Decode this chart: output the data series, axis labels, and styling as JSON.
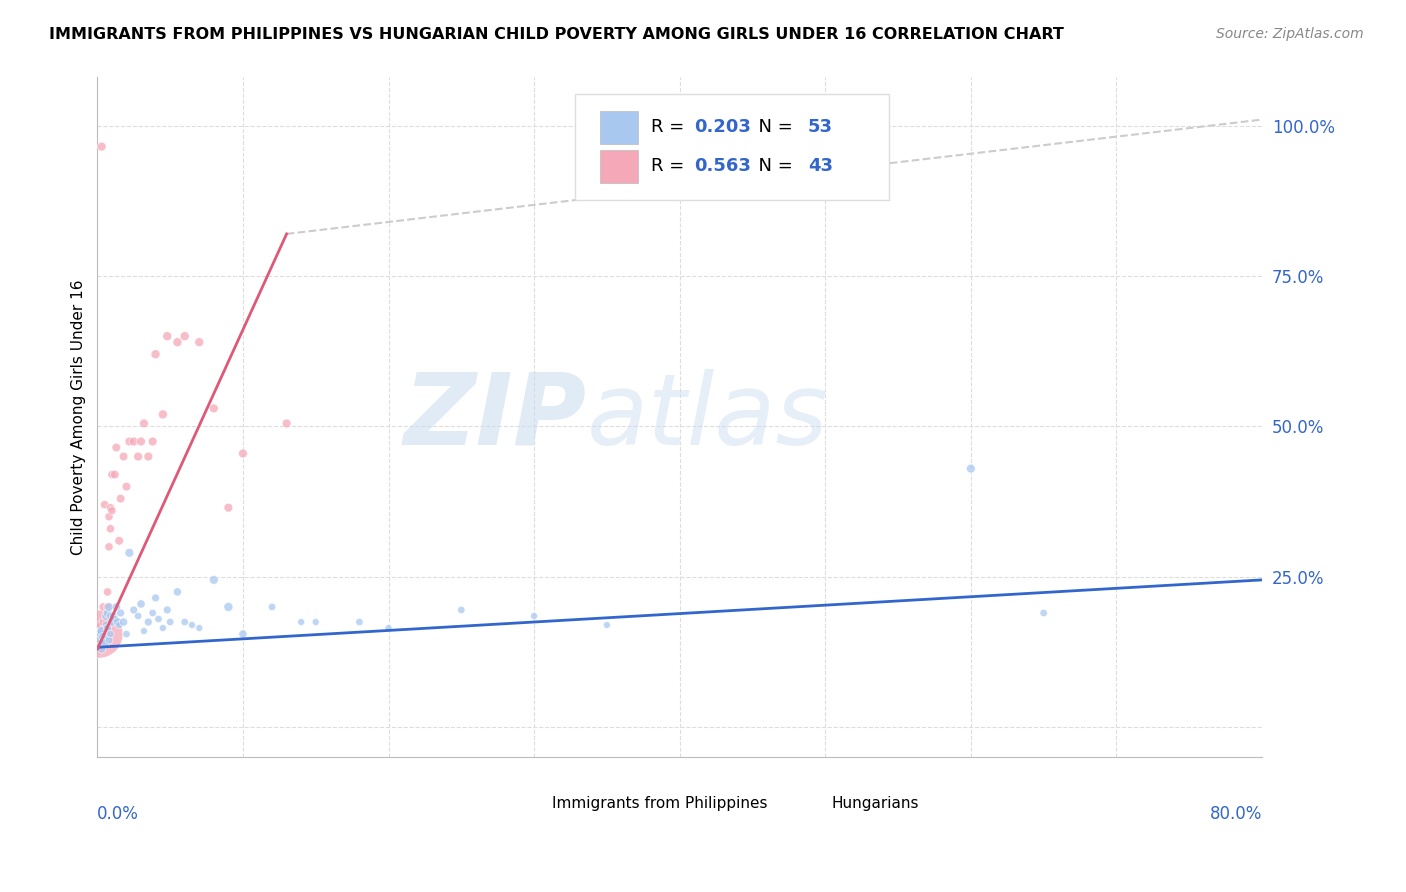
{
  "title": "IMMIGRANTS FROM PHILIPPINES VS HUNGARIAN CHILD POVERTY AMONG GIRLS UNDER 16 CORRELATION CHART",
  "source": "Source: ZipAtlas.com",
  "ylabel": "Child Poverty Among Girls Under 16",
  "watermark": "ZIPatlas",
  "color_blue": "#A8C8F0",
  "color_pink": "#F5A8B8",
  "color_blue_line": "#3366CC",
  "color_pink_line": "#E05878",
  "color_dashed": "#CCCCCC",
  "background_color": "#FFFFFF",
  "grid_color": "#DDDDDD",
  "phil_x": [
    0.001,
    0.002,
    0.003,
    0.003,
    0.004,
    0.005,
    0.005,
    0.006,
    0.006,
    0.007,
    0.007,
    0.008,
    0.008,
    0.009,
    0.009,
    0.01,
    0.011,
    0.012,
    0.013,
    0.014,
    0.015,
    0.016,
    0.018,
    0.02,
    0.022,
    0.025,
    0.028,
    0.03,
    0.032,
    0.035,
    0.038,
    0.04,
    0.042,
    0.045,
    0.048,
    0.05,
    0.055,
    0.06,
    0.065,
    0.07,
    0.08,
    0.09,
    0.1,
    0.12,
    0.14,
    0.15,
    0.18,
    0.2,
    0.25,
    0.3,
    0.35,
    0.6,
    0.65
  ],
  "phil_y": [
    0.155,
    0.145,
    0.16,
    0.13,
    0.15,
    0.145,
    0.14,
    0.185,
    0.17,
    0.19,
    0.165,
    0.145,
    0.2,
    0.155,
    0.185,
    0.175,
    0.185,
    0.18,
    0.2,
    0.175,
    0.17,
    0.19,
    0.175,
    0.155,
    0.29,
    0.195,
    0.185,
    0.205,
    0.16,
    0.175,
    0.19,
    0.215,
    0.18,
    0.165,
    0.195,
    0.175,
    0.225,
    0.175,
    0.17,
    0.165,
    0.245,
    0.2,
    0.155,
    0.2,
    0.175,
    0.175,
    0.175,
    0.165,
    0.195,
    0.185,
    0.17,
    0.43,
    0.19
  ],
  "phil_sizes": [
    50,
    40,
    45,
    35,
    42,
    40,
    35,
    38,
    32,
    40,
    35,
    32,
    38,
    28,
    35,
    38,
    32,
    28,
    35,
    38,
    28,
    32,
    35,
    28,
    40,
    32,
    28,
    35,
    25,
    32,
    28,
    32,
    28,
    25,
    32,
    28,
    35,
    28,
    25,
    25,
    40,
    42,
    35,
    28,
    25,
    25,
    28,
    25,
    28,
    25,
    25,
    40,
    28
  ],
  "hung_x": [
    0.001,
    0.001,
    0.002,
    0.002,
    0.003,
    0.003,
    0.004,
    0.004,
    0.005,
    0.005,
    0.006,
    0.006,
    0.007,
    0.007,
    0.008,
    0.008,
    0.009,
    0.009,
    0.01,
    0.01,
    0.012,
    0.013,
    0.015,
    0.016,
    0.018,
    0.02,
    0.022,
    0.025,
    0.028,
    0.03,
    0.032,
    0.035,
    0.038,
    0.04,
    0.045,
    0.048,
    0.055,
    0.06,
    0.07,
    0.08,
    0.09,
    0.1,
    0.13
  ],
  "hung_y": [
    0.155,
    0.165,
    0.155,
    0.17,
    0.965,
    0.16,
    0.2,
    0.175,
    0.37,
    0.155,
    0.155,
    0.175,
    0.225,
    0.2,
    0.35,
    0.3,
    0.365,
    0.33,
    0.42,
    0.36,
    0.42,
    0.465,
    0.31,
    0.38,
    0.45,
    0.4,
    0.475,
    0.475,
    0.45,
    0.475,
    0.505,
    0.45,
    0.475,
    0.62,
    0.52,
    0.65,
    0.64,
    0.65,
    0.64,
    0.53,
    0.365,
    0.455,
    0.505
  ],
  "hung_sizes": [
    1200,
    40,
    40,
    40,
    40,
    40,
    35,
    35,
    35,
    35,
    35,
    35,
    35,
    35,
    35,
    35,
    35,
    35,
    35,
    35,
    38,
    38,
    38,
    38,
    38,
    38,
    40,
    40,
    40,
    40,
    40,
    40,
    40,
    42,
    42,
    42,
    42,
    42,
    42,
    40,
    40,
    40,
    40
  ],
  "phil_line_x0": 0.0,
  "phil_line_x1": 0.8,
  "phil_line_y0": 0.133,
  "phil_line_y1": 0.245,
  "hung_line_x0": 0.0,
  "hung_line_x1": 0.13,
  "hung_line_y0": 0.13,
  "hung_line_y1": 0.82,
  "dash_line_x0": 0.13,
  "dash_line_x1": 0.8,
  "dash_line_y0": 0.82,
  "dash_line_y1": 1.01,
  "xlim": [
    0.0,
    0.8
  ],
  "ylim": [
    -0.05,
    1.08
  ],
  "yticks": [
    0.0,
    0.25,
    0.5,
    0.75,
    1.0
  ],
  "ytick_labels": [
    "",
    "25.0%",
    "50.0%",
    "75.0%",
    "100.0%"
  ]
}
